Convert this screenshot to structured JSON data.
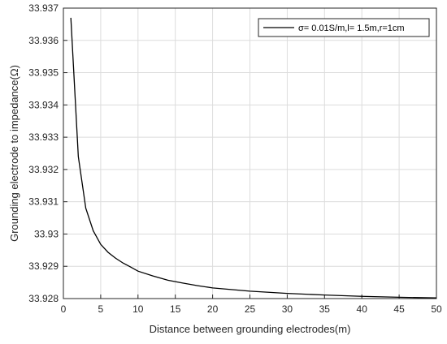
{
  "chart_data": {
    "type": "line",
    "title": "",
    "xlabel": "Distance between grounding electrodes(m)",
    "ylabel": "Grounding electrode to impedance(Ω)",
    "xlim": [
      0,
      50
    ],
    "ylim": [
      33.928,
      33.937
    ],
    "x_ticks": [
      0,
      5,
      10,
      15,
      20,
      25,
      30,
      35,
      40,
      45,
      50
    ],
    "x_tick_labels": [
      "0",
      "5",
      "10",
      "15",
      "20",
      "25",
      "30",
      "35",
      "40",
      "45",
      "50"
    ],
    "y_ticks": [
      33.928,
      33.929,
      33.93,
      33.931,
      33.932,
      33.933,
      33.934,
      33.935,
      33.936,
      33.937
    ],
    "y_tick_labels": [
      "33.928",
      "33.929",
      "33.93",
      "33.931",
      "33.932",
      "33.933",
      "33.934",
      "33.935",
      "33.936",
      "33.937"
    ],
    "grid": true,
    "legend_position": "top-right",
    "series": [
      {
        "name": "σ= 0.01S/m,l= 1.5m,r=1cm",
        "color": "#000000",
        "x": [
          1,
          2,
          3,
          4,
          5,
          6,
          7,
          8,
          9,
          10,
          12,
          14,
          16,
          18,
          20,
          25,
          30,
          35,
          40,
          45,
          50
        ],
        "y": [
          33.9367,
          33.9324,
          33.9308,
          33.9301,
          33.92968,
          33.92943,
          33.92925,
          33.9291,
          33.92898,
          33.92885,
          33.9287,
          33.92857,
          33.92848,
          33.9284,
          33.92833,
          33.92823,
          33.92816,
          33.92811,
          33.92807,
          33.92804,
          33.92802
        ]
      }
    ]
  }
}
